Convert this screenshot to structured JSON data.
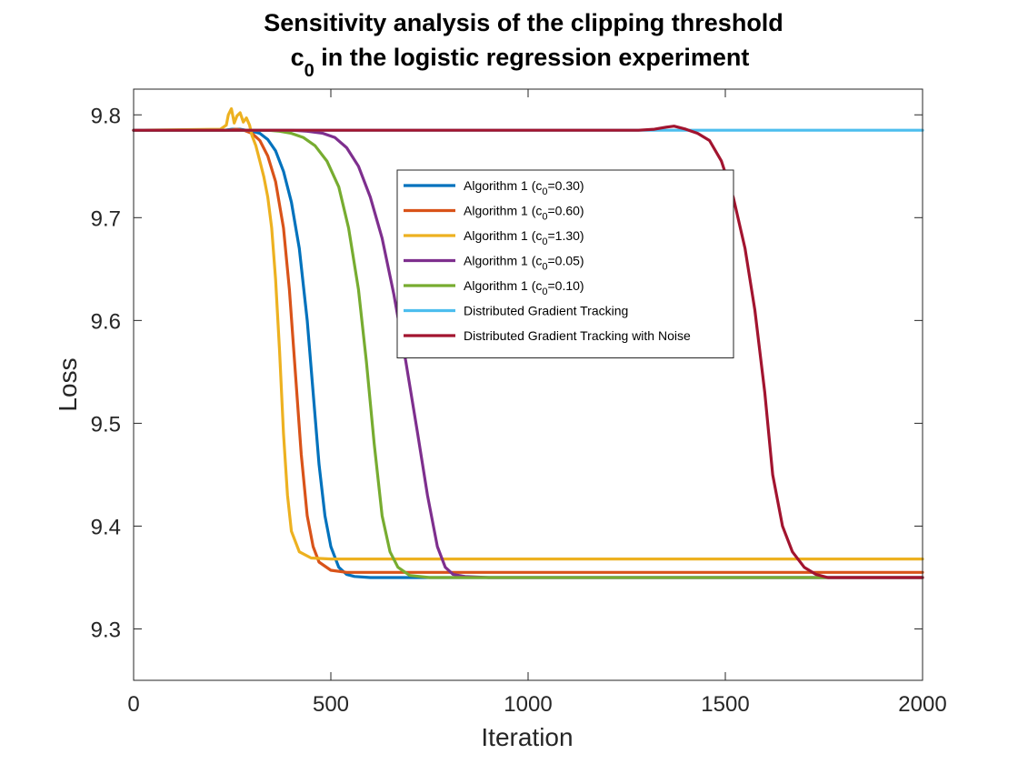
{
  "chart_data": {
    "type": "line",
    "title_line1": "Sensitivity analysis of the clipping threshold",
    "title_line2_prefix": "c",
    "title_line2_sub": "0",
    "title_line2_suffix": " in the logistic regression experiment",
    "xlabel": "Iteration",
    "ylabel": "Loss",
    "xlim": [
      0,
      2000
    ],
    "ylim": [
      9.25,
      9.825
    ],
    "xticks": [
      0,
      500,
      1000,
      1500,
      2000
    ],
    "xtick_labels": [
      "0",
      "500",
      "1000",
      "1500",
      "2000"
    ],
    "yticks": [
      9.3,
      9.4,
      9.5,
      9.6,
      9.7,
      9.8
    ],
    "ytick_labels": [
      "9.3",
      "9.4",
      "9.5",
      "9.6",
      "9.7",
      "9.8"
    ],
    "grid": false,
    "legend_position": "upper-center",
    "series": [
      {
        "name": "Algorithm 1 (c0=0.30)",
        "legend_prefix": "Algorithm 1 (c",
        "legend_sub": "0",
        "legend_suffix": "=0.30)",
        "color": "#0072BD",
        "points": [
          [
            0,
            9.785
          ],
          [
            230,
            9.785
          ],
          [
            250,
            9.786
          ],
          [
            270,
            9.786
          ],
          [
            300,
            9.784
          ],
          [
            320,
            9.782
          ],
          [
            340,
            9.776
          ],
          [
            360,
            9.765
          ],
          [
            380,
            9.745
          ],
          [
            400,
            9.715
          ],
          [
            420,
            9.67
          ],
          [
            440,
            9.6
          ],
          [
            455,
            9.53
          ],
          [
            470,
            9.46
          ],
          [
            485,
            9.41
          ],
          [
            500,
            9.38
          ],
          [
            520,
            9.36
          ],
          [
            540,
            9.353
          ],
          [
            560,
            9.351
          ],
          [
            600,
            9.35
          ],
          [
            2000,
            9.35
          ]
        ]
      },
      {
        "name": "Algorithm 1 (c0=0.60)",
        "legend_prefix": "Algorithm 1 (c",
        "legend_sub": "0",
        "legend_suffix": "=0.60)",
        "color": "#D95319",
        "points": [
          [
            0,
            9.785
          ],
          [
            240,
            9.785
          ],
          [
            260,
            9.786
          ],
          [
            280,
            9.785
          ],
          [
            300,
            9.782
          ],
          [
            320,
            9.775
          ],
          [
            340,
            9.76
          ],
          [
            360,
            9.735
          ],
          [
            380,
            9.69
          ],
          [
            395,
            9.63
          ],
          [
            410,
            9.55
          ],
          [
            425,
            9.47
          ],
          [
            440,
            9.41
          ],
          [
            455,
            9.38
          ],
          [
            470,
            9.365
          ],
          [
            500,
            9.357
          ],
          [
            540,
            9.355
          ],
          [
            2000,
            9.355
          ]
        ]
      },
      {
        "name": "Algorithm 1 (c0=1.30)",
        "legend_prefix": "Algorithm 1 (c",
        "legend_sub": "0",
        "legend_suffix": "=1.30)",
        "color": "#EDB120",
        "points": [
          [
            0,
            9.785
          ],
          [
            220,
            9.786
          ],
          [
            235,
            9.79
          ],
          [
            240,
            9.8
          ],
          [
            248,
            9.806
          ],
          [
            255,
            9.792
          ],
          [
            262,
            9.799
          ],
          [
            270,
            9.802
          ],
          [
            278,
            9.793
          ],
          [
            286,
            9.797
          ],
          [
            294,
            9.79
          ],
          [
            300,
            9.78
          ],
          [
            310,
            9.77
          ],
          [
            320,
            9.755
          ],
          [
            330,
            9.74
          ],
          [
            340,
            9.72
          ],
          [
            350,
            9.69
          ],
          [
            360,
            9.64
          ],
          [
            370,
            9.57
          ],
          [
            380,
            9.49
          ],
          [
            390,
            9.43
          ],
          [
            400,
            9.395
          ],
          [
            420,
            9.375
          ],
          [
            450,
            9.369
          ],
          [
            500,
            9.368
          ],
          [
            2000,
            9.368
          ]
        ]
      },
      {
        "name": "Algorithm 1 (c0=0.05)",
        "legend_prefix": "Algorithm 1 (c",
        "legend_sub": "0",
        "legend_suffix": "=0.05)",
        "color": "#7E2F8E",
        "points": [
          [
            0,
            9.785
          ],
          [
            400,
            9.785
          ],
          [
            440,
            9.784
          ],
          [
            480,
            9.782
          ],
          [
            510,
            9.778
          ],
          [
            540,
            9.768
          ],
          [
            570,
            9.75
          ],
          [
            600,
            9.72
          ],
          [
            630,
            9.68
          ],
          [
            660,
            9.625
          ],
          [
            690,
            9.56
          ],
          [
            720,
            9.49
          ],
          [
            745,
            9.43
          ],
          [
            770,
            9.38
          ],
          [
            790,
            9.36
          ],
          [
            810,
            9.353
          ],
          [
            840,
            9.351
          ],
          [
            900,
            9.35
          ],
          [
            2000,
            9.35
          ]
        ]
      },
      {
        "name": "Algorithm 1 (c0=0.10)",
        "legend_prefix": "Algorithm 1 (c",
        "legend_sub": "0",
        "legend_suffix": "=0.10)",
        "color": "#77AC30",
        "points": [
          [
            0,
            9.785
          ],
          [
            340,
            9.785
          ],
          [
            370,
            9.784
          ],
          [
            400,
            9.782
          ],
          [
            430,
            9.778
          ],
          [
            460,
            9.77
          ],
          [
            490,
            9.755
          ],
          [
            520,
            9.73
          ],
          [
            545,
            9.69
          ],
          [
            570,
            9.63
          ],
          [
            590,
            9.56
          ],
          [
            610,
            9.48
          ],
          [
            630,
            9.41
          ],
          [
            650,
            9.375
          ],
          [
            670,
            9.36
          ],
          [
            700,
            9.352
          ],
          [
            750,
            9.35
          ],
          [
            2000,
            9.35
          ]
        ]
      },
      {
        "name": "Distributed Gradient Tracking",
        "legend_prefix": "Distributed Gradient Tracking",
        "legend_sub": "",
        "legend_suffix": "",
        "color": "#4DBEEE",
        "points": [
          [
            0,
            9.785
          ],
          [
            2000,
            9.785
          ]
        ]
      },
      {
        "name": "Distributed Gradient Tracking with Noise",
        "legend_prefix": "Distributed Gradient Tracking with Noise",
        "legend_sub": "",
        "legend_suffix": "",
        "color": "#A2142F",
        "points": [
          [
            0,
            9.785
          ],
          [
            1280,
            9.785
          ],
          [
            1320,
            9.786
          ],
          [
            1350,
            9.788
          ],
          [
            1370,
            9.789
          ],
          [
            1400,
            9.786
          ],
          [
            1430,
            9.782
          ],
          [
            1460,
            9.775
          ],
          [
            1490,
            9.755
          ],
          [
            1520,
            9.72
          ],
          [
            1550,
            9.67
          ],
          [
            1575,
            9.61
          ],
          [
            1600,
            9.53
          ],
          [
            1620,
            9.45
          ],
          [
            1645,
            9.4
          ],
          [
            1670,
            9.375
          ],
          [
            1700,
            9.36
          ],
          [
            1730,
            9.353
          ],
          [
            1760,
            9.35
          ],
          [
            2000,
            9.35
          ]
        ]
      }
    ]
  }
}
